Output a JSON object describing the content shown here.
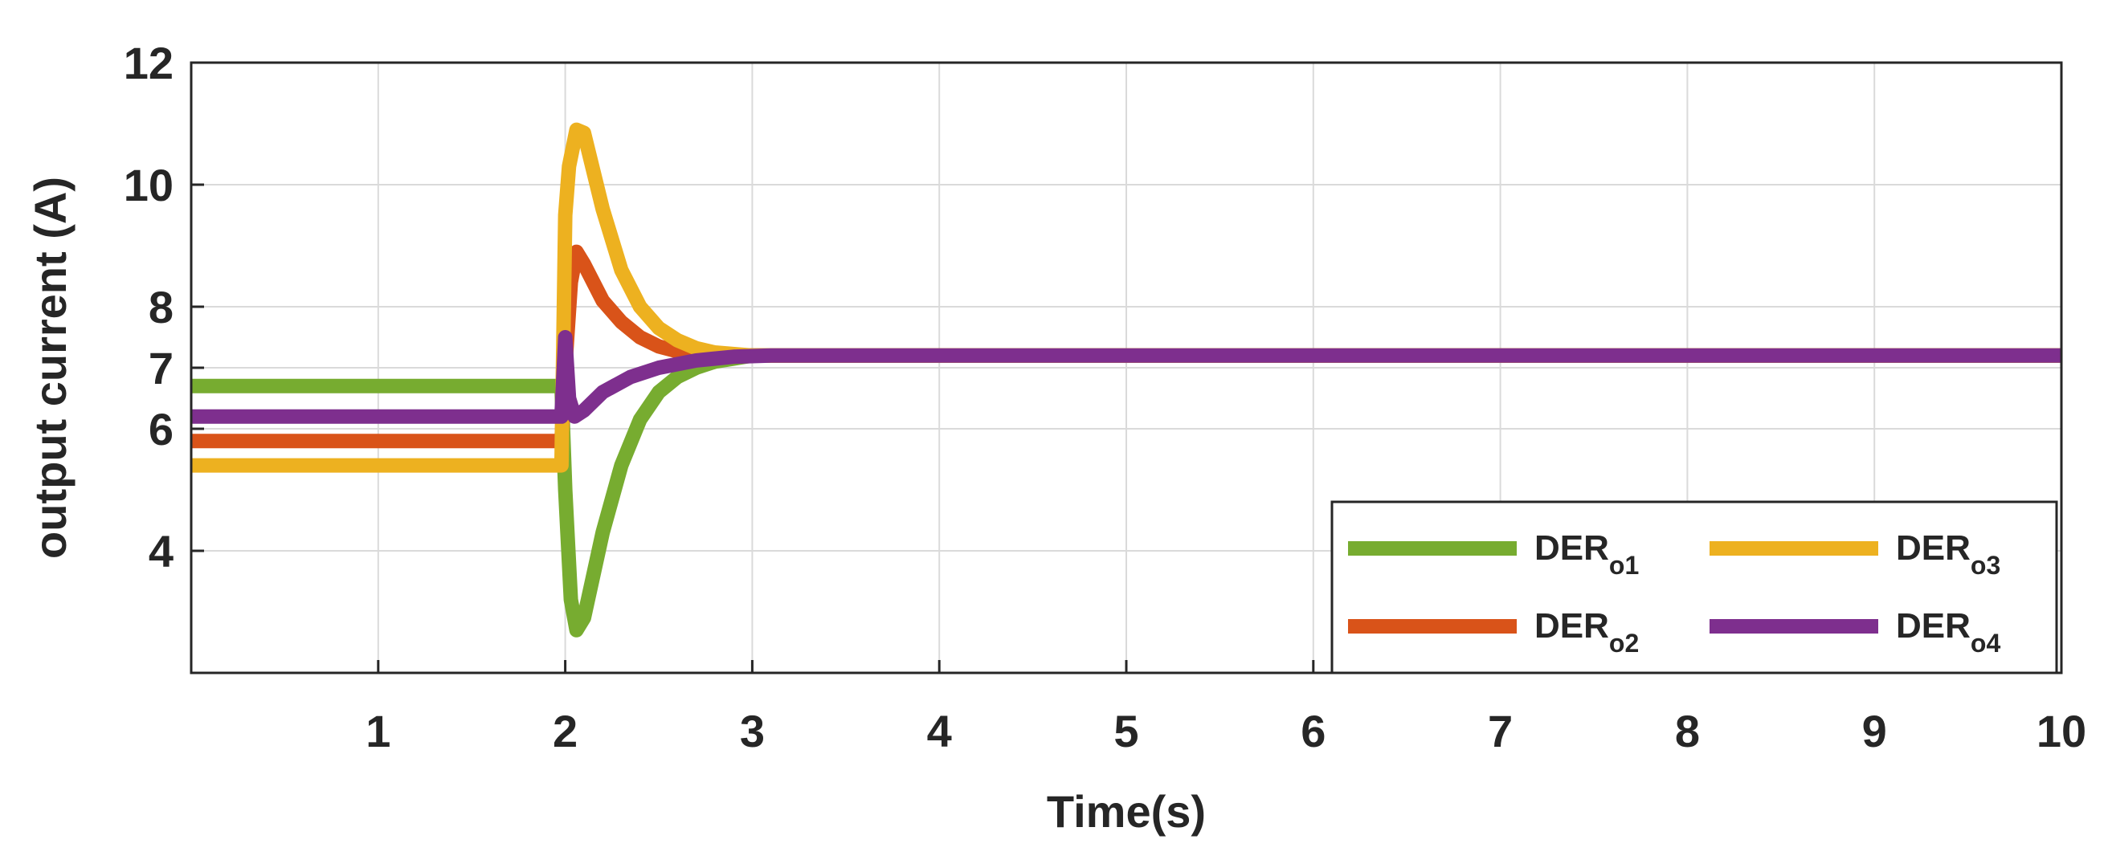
{
  "chart_data": {
    "type": "line",
    "title": "",
    "xlabel": "Time(s)",
    "ylabel": "output current (A)",
    "xlim": [
      0,
      10
    ],
    "ylim": [
      2,
      12
    ],
    "xticks": [
      1,
      2,
      3,
      4,
      5,
      6,
      7,
      8,
      9,
      10
    ],
    "xtick_labels": [
      "1",
      "2",
      "3",
      "4",
      "5",
      "6",
      "7",
      "8",
      "9",
      "10"
    ],
    "yticks": [
      4,
      6,
      7,
      8,
      10,
      12
    ],
    "ytick_labels": [
      "4",
      "6",
      "7",
      "8",
      "10",
      "12"
    ],
    "grid": true,
    "legend": {
      "position": "bottom-right",
      "columns": 2
    },
    "series": [
      {
        "name": "DER",
        "subscript": "o1",
        "color": "#77AC30",
        "points": [
          [
            0,
            6.7
          ],
          [
            1.98,
            6.7
          ],
          [
            2.0,
            5.0
          ],
          [
            2.03,
            3.2
          ],
          [
            2.06,
            2.7
          ],
          [
            2.1,
            2.9
          ],
          [
            2.2,
            4.3
          ],
          [
            2.3,
            5.4
          ],
          [
            2.4,
            6.15
          ],
          [
            2.5,
            6.6
          ],
          [
            2.6,
            6.85
          ],
          [
            2.7,
            7.0
          ],
          [
            2.8,
            7.1
          ],
          [
            2.9,
            7.15
          ],
          [
            3.0,
            7.2
          ],
          [
            10,
            7.2
          ]
        ]
      },
      {
        "name": "DER",
        "subscript": "o2",
        "color": "#D95319",
        "points": [
          [
            0,
            5.8
          ],
          [
            1.98,
            5.8
          ],
          [
            2.0,
            7.0
          ],
          [
            2.03,
            8.4
          ],
          [
            2.06,
            8.9
          ],
          [
            2.1,
            8.7
          ],
          [
            2.2,
            8.1
          ],
          [
            2.3,
            7.75
          ],
          [
            2.4,
            7.5
          ],
          [
            2.5,
            7.35
          ],
          [
            2.6,
            7.27
          ],
          [
            2.8,
            7.22
          ],
          [
            3.0,
            7.2
          ],
          [
            10,
            7.2
          ]
        ]
      },
      {
        "name": "DER",
        "subscript": "o3",
        "color": "#EDB120",
        "points": [
          [
            0,
            5.4
          ],
          [
            1.98,
            5.4
          ],
          [
            2.0,
            9.5
          ],
          [
            2.02,
            10.3
          ],
          [
            2.06,
            10.9
          ],
          [
            2.1,
            10.85
          ],
          [
            2.2,
            9.6
          ],
          [
            2.3,
            8.6
          ],
          [
            2.4,
            8.0
          ],
          [
            2.5,
            7.65
          ],
          [
            2.6,
            7.45
          ],
          [
            2.7,
            7.32
          ],
          [
            2.8,
            7.25
          ],
          [
            3.0,
            7.2
          ],
          [
            10,
            7.2
          ]
        ]
      },
      {
        "name": "DER",
        "subscript": "o4",
        "color": "#7E2F8E",
        "points": [
          [
            0,
            6.2
          ],
          [
            1.98,
            6.2
          ],
          [
            2.0,
            7.5
          ],
          [
            2.02,
            6.5
          ],
          [
            2.05,
            6.2
          ],
          [
            2.1,
            6.3
          ],
          [
            2.2,
            6.6
          ],
          [
            2.35,
            6.85
          ],
          [
            2.5,
            7.0
          ],
          [
            2.7,
            7.12
          ],
          [
            2.9,
            7.18
          ],
          [
            3.1,
            7.2
          ],
          [
            10,
            7.2
          ]
        ]
      }
    ]
  }
}
